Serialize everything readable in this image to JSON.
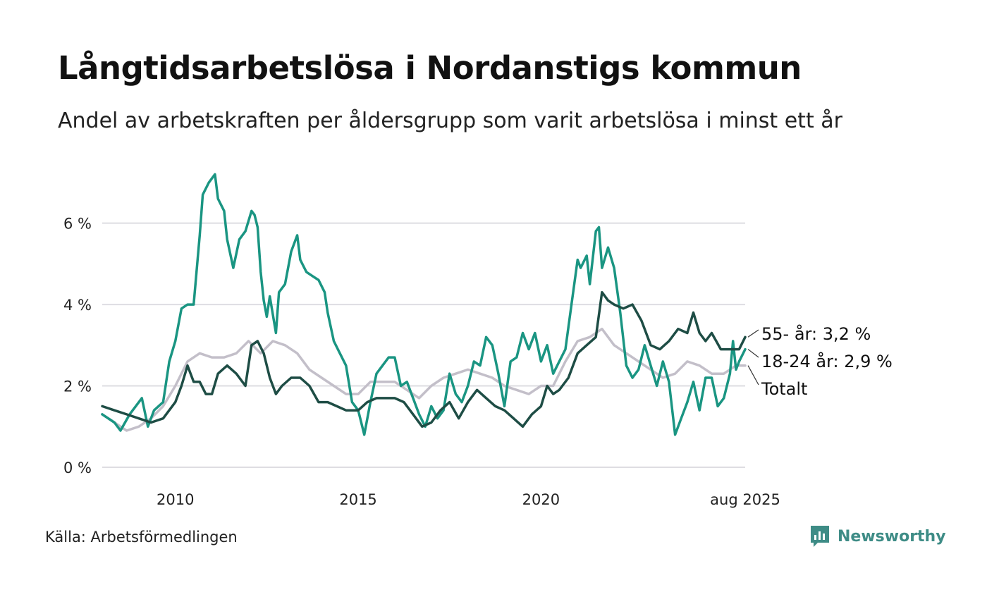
{
  "title": "Långtidsarbetslösa i Nordanstigs kommun",
  "subtitle": "Andel av arbetskraften per åldersgrupp som varit arbetslösa i minst ett år",
  "source": "Källa: Arbetsförmedlingen",
  "brand": {
    "name": "Newsworthy",
    "icon": "newsworthy-logo-icon",
    "color": "#3e8c86"
  },
  "chart_data": {
    "type": "line",
    "title": "Långtidsarbetslösa i Nordanstigs kommun",
    "subtitle": "Andel av arbetskraften per åldersgrupp som varit arbetslösa i minst ett år",
    "x_range": [
      "2008-01",
      "2025-08"
    ],
    "ylim": [
      0,
      7.5
    ],
    "y_ticks": [
      0,
      2,
      4,
      6
    ],
    "y_tick_labels": [
      "0 %",
      "2 %",
      "4 %",
      "6 %"
    ],
    "x_ticks": [
      "2010-01",
      "2015-01",
      "2020-01",
      "2025-08"
    ],
    "x_tick_labels": [
      "2010",
      "2015",
      "2020",
      "aug 2025"
    ],
    "grid": "horizontal",
    "legend": "direct labels at line ends (right)",
    "series": [
      {
        "name": "Totalt",
        "label": "Totalt",
        "color": "#c3bfc9",
        "points": [
          [
            "2008-01",
            1.3
          ],
          [
            "2008-05",
            1.1
          ],
          [
            "2008-09",
            0.9
          ],
          [
            "2009-01",
            1.0
          ],
          [
            "2009-05",
            1.2
          ],
          [
            "2009-09",
            1.5
          ],
          [
            "2010-01",
            2.0
          ],
          [
            "2010-05",
            2.6
          ],
          [
            "2010-09",
            2.8
          ],
          [
            "2011-01",
            2.7
          ],
          [
            "2011-05",
            2.7
          ],
          [
            "2011-09",
            2.8
          ],
          [
            "2012-01",
            3.1
          ],
          [
            "2012-05",
            2.8
          ],
          [
            "2012-09",
            3.1
          ],
          [
            "2013-01",
            3.0
          ],
          [
            "2013-05",
            2.8
          ],
          [
            "2013-09",
            2.4
          ],
          [
            "2014-01",
            2.2
          ],
          [
            "2014-05",
            2.0
          ],
          [
            "2014-09",
            1.8
          ],
          [
            "2015-01",
            1.8
          ],
          [
            "2015-05",
            2.1
          ],
          [
            "2015-09",
            2.1
          ],
          [
            "2016-01",
            2.1
          ],
          [
            "2016-05",
            1.9
          ],
          [
            "2016-09",
            1.7
          ],
          [
            "2017-01",
            2.0
          ],
          [
            "2017-05",
            2.2
          ],
          [
            "2017-09",
            2.3
          ],
          [
            "2018-01",
            2.4
          ],
          [
            "2018-05",
            2.3
          ],
          [
            "2018-09",
            2.2
          ],
          [
            "2019-01",
            2.0
          ],
          [
            "2019-05",
            1.9
          ],
          [
            "2019-09",
            1.8
          ],
          [
            "2020-01",
            2.0
          ],
          [
            "2020-05",
            2.0
          ],
          [
            "2020-09",
            2.6
          ],
          [
            "2021-01",
            3.1
          ],
          [
            "2021-05",
            3.2
          ],
          [
            "2021-09",
            3.4
          ],
          [
            "2022-01",
            3.0
          ],
          [
            "2022-05",
            2.8
          ],
          [
            "2022-09",
            2.6
          ],
          [
            "2023-01",
            2.4
          ],
          [
            "2023-05",
            2.2
          ],
          [
            "2023-09",
            2.3
          ],
          [
            "2024-01",
            2.6
          ],
          [
            "2024-05",
            2.5
          ],
          [
            "2024-09",
            2.3
          ],
          [
            "2025-01",
            2.3
          ],
          [
            "2025-05",
            2.5
          ],
          [
            "2025-08",
            2.5
          ]
        ]
      },
      {
        "name": "18-24 år",
        "label": "18-24 år: 2,9 %",
        "color": "#1a9582",
        "points": [
          [
            "2008-01",
            1.3
          ],
          [
            "2008-05",
            1.1
          ],
          [
            "2008-07",
            0.9
          ],
          [
            "2008-10",
            1.3
          ],
          [
            "2009-02",
            1.7
          ],
          [
            "2009-04",
            1.0
          ],
          [
            "2009-06",
            1.4
          ],
          [
            "2009-09",
            1.6
          ],
          [
            "2009-11",
            2.6
          ],
          [
            "2010-01",
            3.1
          ],
          [
            "2010-03",
            3.9
          ],
          [
            "2010-05",
            4.0
          ],
          [
            "2010-07",
            4.0
          ],
          [
            "2010-09",
            5.7
          ],
          [
            "2010-10",
            6.7
          ],
          [
            "2010-12",
            7.0
          ],
          [
            "2011-02",
            7.2
          ],
          [
            "2011-03",
            6.6
          ],
          [
            "2011-05",
            6.3
          ],
          [
            "2011-06",
            5.6
          ],
          [
            "2011-08",
            4.9
          ],
          [
            "2011-10",
            5.6
          ],
          [
            "2011-12",
            5.8
          ],
          [
            "2012-02",
            6.3
          ],
          [
            "2012-03",
            6.2
          ],
          [
            "2012-04",
            5.9
          ],
          [
            "2012-05",
            4.8
          ],
          [
            "2012-06",
            4.1
          ],
          [
            "2012-07",
            3.7
          ],
          [
            "2012-08",
            4.2
          ],
          [
            "2012-10",
            3.3
          ],
          [
            "2012-11",
            4.3
          ],
          [
            "2013-01",
            4.5
          ],
          [
            "2013-03",
            5.3
          ],
          [
            "2013-05",
            5.7
          ],
          [
            "2013-06",
            5.1
          ],
          [
            "2013-08",
            4.8
          ],
          [
            "2013-10",
            4.7
          ],
          [
            "2013-12",
            4.6
          ],
          [
            "2014-02",
            4.3
          ],
          [
            "2014-03",
            3.8
          ],
          [
            "2014-05",
            3.1
          ],
          [
            "2014-07",
            2.8
          ],
          [
            "2014-09",
            2.5
          ],
          [
            "2014-11",
            1.6
          ],
          [
            "2015-01",
            1.4
          ],
          [
            "2015-03",
            0.8
          ],
          [
            "2015-05",
            1.6
          ],
          [
            "2015-07",
            2.3
          ],
          [
            "2015-09",
            2.5
          ],
          [
            "2015-11",
            2.7
          ],
          [
            "2016-01",
            2.7
          ],
          [
            "2016-03",
            2.0
          ],
          [
            "2016-05",
            2.1
          ],
          [
            "2016-07",
            1.7
          ],
          [
            "2016-09",
            1.3
          ],
          [
            "2016-11",
            1.0
          ],
          [
            "2017-01",
            1.5
          ],
          [
            "2017-03",
            1.2
          ],
          [
            "2017-05",
            1.4
          ],
          [
            "2017-07",
            2.3
          ],
          [
            "2017-09",
            1.8
          ],
          [
            "2017-11",
            1.6
          ],
          [
            "2018-01",
            2.0
          ],
          [
            "2018-03",
            2.6
          ],
          [
            "2018-05",
            2.5
          ],
          [
            "2018-07",
            3.2
          ],
          [
            "2018-09",
            3.0
          ],
          [
            "2018-11",
            2.3
          ],
          [
            "2019-01",
            1.5
          ],
          [
            "2019-03",
            2.6
          ],
          [
            "2019-05",
            2.7
          ],
          [
            "2019-07",
            3.3
          ],
          [
            "2019-09",
            2.9
          ],
          [
            "2019-11",
            3.3
          ],
          [
            "2020-01",
            2.6
          ],
          [
            "2020-03",
            3.0
          ],
          [
            "2020-05",
            2.3
          ],
          [
            "2020-07",
            2.6
          ],
          [
            "2020-09",
            2.9
          ],
          [
            "2020-11",
            4.0
          ],
          [
            "2021-01",
            5.1
          ],
          [
            "2021-02",
            4.9
          ],
          [
            "2021-04",
            5.2
          ],
          [
            "2021-05",
            4.5
          ],
          [
            "2021-07",
            5.8
          ],
          [
            "2021-08",
            5.9
          ],
          [
            "2021-09",
            4.9
          ],
          [
            "2021-11",
            5.4
          ],
          [
            "2022-01",
            4.9
          ],
          [
            "2022-03",
            3.8
          ],
          [
            "2022-05",
            2.5
          ],
          [
            "2022-07",
            2.2
          ],
          [
            "2022-09",
            2.4
          ],
          [
            "2022-11",
            3.0
          ],
          [
            "2023-01",
            2.5
          ],
          [
            "2023-03",
            2.0
          ],
          [
            "2023-05",
            2.6
          ],
          [
            "2023-07",
            2.1
          ],
          [
            "2023-09",
            0.8
          ],
          [
            "2023-11",
            1.2
          ],
          [
            "2024-01",
            1.6
          ],
          [
            "2024-03",
            2.1
          ],
          [
            "2024-05",
            1.4
          ],
          [
            "2024-07",
            2.2
          ],
          [
            "2024-09",
            2.2
          ],
          [
            "2024-11",
            1.5
          ],
          [
            "2025-01",
            1.7
          ],
          [
            "2025-03",
            2.3
          ],
          [
            "2025-04",
            3.1
          ],
          [
            "2025-05",
            2.4
          ],
          [
            "2025-06",
            2.6
          ],
          [
            "2025-08",
            2.9
          ]
        ]
      },
      {
        "name": "55- år",
        "label": "55- år: 3,2 %",
        "color": "#1e4d45",
        "points": [
          [
            "2008-01",
            1.5
          ],
          [
            "2008-05",
            1.4
          ],
          [
            "2008-09",
            1.3
          ],
          [
            "2009-01",
            1.2
          ],
          [
            "2009-05",
            1.1
          ],
          [
            "2009-09",
            1.2
          ],
          [
            "2010-01",
            1.6
          ],
          [
            "2010-03",
            2.0
          ],
          [
            "2010-05",
            2.5
          ],
          [
            "2010-07",
            2.1
          ],
          [
            "2010-09",
            2.1
          ],
          [
            "2010-11",
            1.8
          ],
          [
            "2011-01",
            1.8
          ],
          [
            "2011-03",
            2.3
          ],
          [
            "2011-06",
            2.5
          ],
          [
            "2011-09",
            2.3
          ],
          [
            "2011-12",
            2.0
          ],
          [
            "2012-02",
            3.0
          ],
          [
            "2012-04",
            3.1
          ],
          [
            "2012-06",
            2.8
          ],
          [
            "2012-08",
            2.2
          ],
          [
            "2012-10",
            1.8
          ],
          [
            "2012-12",
            2.0
          ],
          [
            "2013-03",
            2.2
          ],
          [
            "2013-06",
            2.2
          ],
          [
            "2013-09",
            2.0
          ],
          [
            "2013-12",
            1.6
          ],
          [
            "2014-03",
            1.6
          ],
          [
            "2014-06",
            1.5
          ],
          [
            "2014-09",
            1.4
          ],
          [
            "2015-01",
            1.4
          ],
          [
            "2015-04",
            1.6
          ],
          [
            "2015-07",
            1.7
          ],
          [
            "2015-10",
            1.7
          ],
          [
            "2016-01",
            1.7
          ],
          [
            "2016-04",
            1.6
          ],
          [
            "2016-07",
            1.3
          ],
          [
            "2016-10",
            1.0
          ],
          [
            "2017-01",
            1.1
          ],
          [
            "2017-04",
            1.4
          ],
          [
            "2017-07",
            1.6
          ],
          [
            "2017-10",
            1.2
          ],
          [
            "2018-01",
            1.6
          ],
          [
            "2018-04",
            1.9
          ],
          [
            "2018-07",
            1.7
          ],
          [
            "2018-10",
            1.5
          ],
          [
            "2019-01",
            1.4
          ],
          [
            "2019-04",
            1.2
          ],
          [
            "2019-07",
            1.0
          ],
          [
            "2019-10",
            1.3
          ],
          [
            "2020-01",
            1.5
          ],
          [
            "2020-03",
            2.0
          ],
          [
            "2020-05",
            1.8
          ],
          [
            "2020-07",
            1.9
          ],
          [
            "2020-10",
            2.2
          ],
          [
            "2021-01",
            2.8
          ],
          [
            "2021-04",
            3.0
          ],
          [
            "2021-07",
            3.2
          ],
          [
            "2021-09",
            4.3
          ],
          [
            "2021-11",
            4.1
          ],
          [
            "2022-01",
            4.0
          ],
          [
            "2022-04",
            3.9
          ],
          [
            "2022-07",
            4.0
          ],
          [
            "2022-10",
            3.6
          ],
          [
            "2023-01",
            3.0
          ],
          [
            "2023-04",
            2.9
          ],
          [
            "2023-07",
            3.1
          ],
          [
            "2023-10",
            3.4
          ],
          [
            "2024-01",
            3.3
          ],
          [
            "2024-03",
            3.8
          ],
          [
            "2024-05",
            3.3
          ],
          [
            "2024-07",
            3.1
          ],
          [
            "2024-09",
            3.3
          ],
          [
            "2024-12",
            2.9
          ],
          [
            "2025-03",
            2.9
          ],
          [
            "2025-06",
            2.9
          ],
          [
            "2025-08",
            3.2
          ]
        ]
      }
    ]
  }
}
